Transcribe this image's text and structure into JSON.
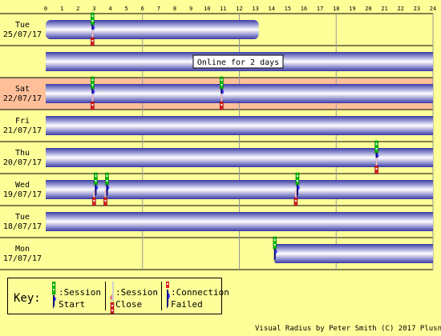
{
  "chart_data": {
    "type": "timeline",
    "x_ticks": [
      "0",
      "1",
      "2",
      "3",
      "4",
      "5",
      "6",
      "7",
      "8",
      "9",
      "10",
      "11",
      "12",
      "13",
      "14",
      "15",
      "16",
      "17",
      "18",
      "19",
      "20",
      "21",
      "22",
      "23",
      "24"
    ],
    "xlim": [
      0,
      24
    ],
    "rows": [
      {
        "day": "Tue",
        "date": "25/07/17",
        "highlight": false,
        "bars": [
          [
            0,
            13.2
          ]
        ],
        "starts": [
          2.9
        ],
        "closes": [
          2.9
        ],
        "failed": []
      },
      {
        "day": "",
        "date": "",
        "highlight": false,
        "bars": [
          [
            0,
            24
          ]
        ],
        "starts": [],
        "closes": [],
        "failed": [],
        "note": "Online for 2 days"
      },
      {
        "day": "Sat",
        "date": "22/07/17",
        "highlight": true,
        "bars": [
          [
            0,
            24
          ]
        ],
        "starts": [
          2.9,
          10.9
        ],
        "closes": [
          2.9,
          10.9
        ],
        "failed": []
      },
      {
        "day": "Fri",
        "date": "21/07/17",
        "highlight": false,
        "bars": [
          [
            0,
            24
          ]
        ],
        "starts": [],
        "closes": [],
        "failed": []
      },
      {
        "day": "Thu",
        "date": "20/07/17",
        "highlight": false,
        "bars": [
          [
            0,
            24
          ]
        ],
        "starts": [
          20.5
        ],
        "closes": [
          20.5
        ],
        "failed": []
      },
      {
        "day": "Wed",
        "date": "19/07/17",
        "highlight": false,
        "bars": [
          [
            0,
            24
          ]
        ],
        "starts": [
          3.1,
          3.8,
          15.6
        ],
        "closes": [
          3.0,
          3.7,
          15.5
        ],
        "failed": []
      },
      {
        "day": "Tue",
        "date": "18/07/17",
        "highlight": false,
        "bars": [
          [
            0,
            24
          ]
        ],
        "starts": [],
        "closes": [],
        "failed": []
      },
      {
        "day": "Mon",
        "date": "17/07/17",
        "highlight": false,
        "bars": [
          [
            14.2,
            24
          ]
        ],
        "starts": [
          14.2
        ],
        "closes": [],
        "failed": []
      }
    ]
  },
  "key": {
    "title": "Key:",
    "session_start": [
      ":Session",
      "Start"
    ],
    "session_close": [
      ":Session",
      "Close"
    ],
    "connection_failed": [
      ":Connection",
      "Failed"
    ]
  },
  "footer": {
    "credit": "Visual Radius by Peter Smith (C) 2017 Plusnet"
  },
  "colors": {
    "background": "#ffff99",
    "row_highlight": "#ffbf99",
    "bar_dark": "#3a3aa8",
    "bar_light": "#ffffff",
    "grid": "#999999",
    "marker_green": "#00c000",
    "marker_red": "#e02020"
  }
}
